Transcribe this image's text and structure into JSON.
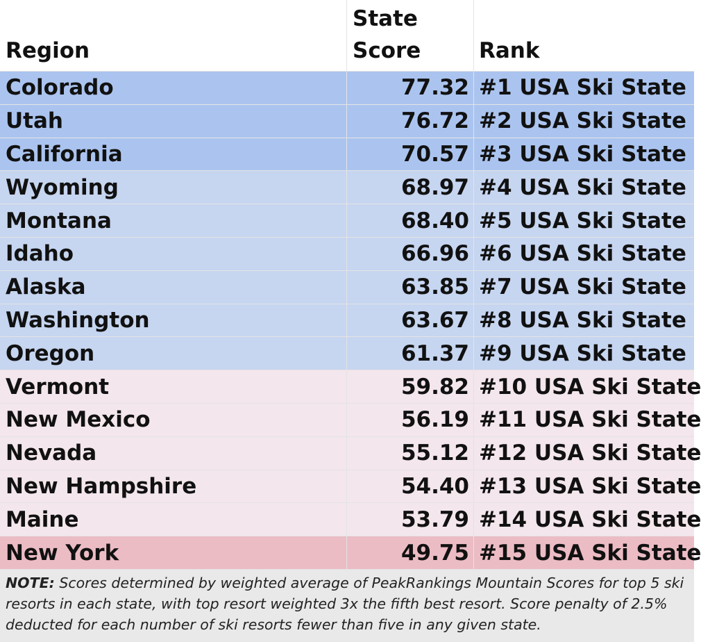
{
  "table": {
    "header": [
      "Region",
      "State Score",
      "Rank"
    ],
    "rows": [
      {
        "cells": [
          "Colorado",
          "77.32",
          "#1 USA Ski State"
        ],
        "color": "#abc4ef"
      },
      {
        "cells": [
          "Utah",
          "76.72",
          "#2 USA Ski State"
        ],
        "color": "#abc4ef"
      },
      {
        "cells": [
          "California",
          "70.57",
          "#3 USA Ski State"
        ],
        "color": "#abc4ef"
      },
      {
        "cells": [
          "Wyoming",
          "68.97",
          "#4 USA Ski State"
        ],
        "color": "#c6d5f0"
      },
      {
        "cells": [
          "Montana",
          "68.40",
          "#5 USA Ski State"
        ],
        "color": "#c6d5f0"
      },
      {
        "cells": [
          "Idaho",
          "66.96",
          "#6 USA Ski State"
        ],
        "color": "#c6d5f0"
      },
      {
        "cells": [
          "Alaska",
          "63.85",
          "#7 USA Ski State"
        ],
        "color": "#c6d5f0"
      },
      {
        "cells": [
          "Washington",
          "63.67",
          "#8 USA Ski State"
        ],
        "color": "#c6d5f0"
      },
      {
        "cells": [
          "Oregon",
          "61.37",
          "#9 USA Ski State"
        ],
        "color": "#c6d5f0"
      },
      {
        "cells": [
          "Vermont",
          "59.82",
          "#10 USA Ski State"
        ],
        "color": "#f3e6ec"
      },
      {
        "cells": [
          "New Mexico",
          "56.19",
          "#11 USA Ski State"
        ],
        "color": "#f3e6ec"
      },
      {
        "cells": [
          "Nevada",
          "55.12",
          "#12 USA Ski State"
        ],
        "color": "#f3e6ec"
      },
      {
        "cells": [
          "New Hampshire",
          "54.40",
          "#13 USA Ski State"
        ],
        "color": "#f3e6ec"
      },
      {
        "cells": [
          "Maine",
          "53.79",
          "#14 USA Ski State"
        ],
        "color": "#f3e6ec"
      },
      {
        "cells": [
          "New York",
          "49.75",
          "#15 USA Ski State"
        ],
        "color": "#ecbcc4"
      }
    ]
  },
  "note": {
    "label": "NOTE:",
    "text": "Scores determined by weighted average of PeakRankings Mountain Scores for top 5 ski resorts in each state, with top resort weighted 3x the fifth best resort. Score penalty of 2.5% deducted for each number of ski resorts fewer than five in any given state."
  }
}
